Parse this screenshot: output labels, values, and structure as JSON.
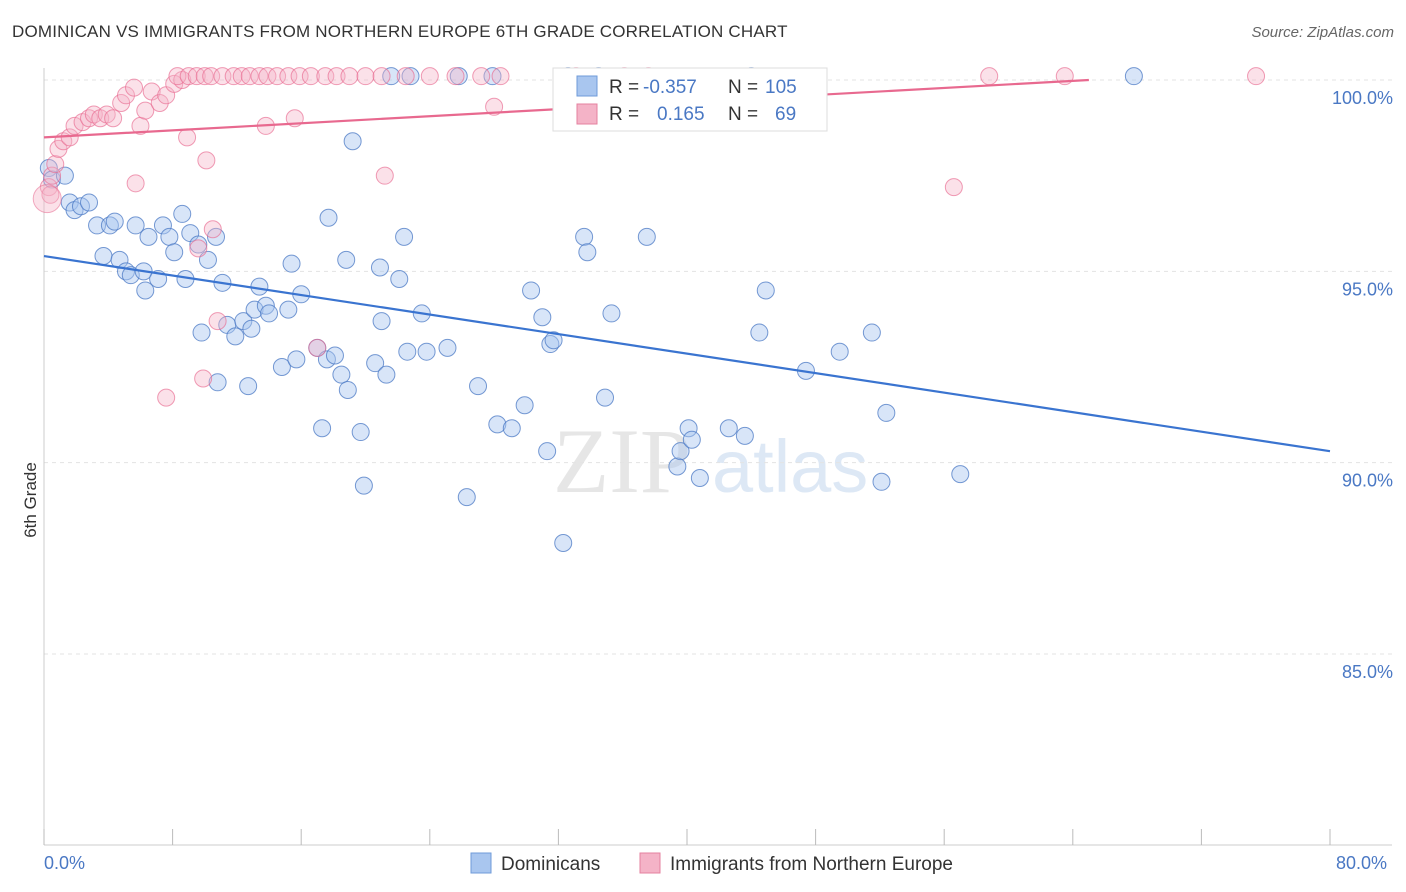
{
  "title": "DOMINICAN VS IMMIGRANTS FROM NORTHERN EUROPE 6TH GRADE CORRELATION CHART",
  "source": "Source: ZipAtlas.com",
  "watermark": {
    "zip": "ZIP",
    "atlas": "atlas"
  },
  "legend_stats": {
    "row1": {
      "r_label": "R =",
      "r_value": "-0.357",
      "n_label": "N =",
      "n_value": "105"
    },
    "row2": {
      "r_label": "R =",
      "r_value": "0.165",
      "n_label": "N =",
      "n_value": "69"
    }
  },
  "colors": {
    "blue": "#4a78c4",
    "blue_fill": "#a9c6ef",
    "blue_line": "#3a74d0",
    "pink": "#e8698f",
    "pink_fill": "#f4b3c7"
  },
  "chart_data": {
    "type": "scatter",
    "xlabel": "",
    "ylabel": "6th Grade",
    "xlim": [
      0,
      80
    ],
    "ylim": [
      80,
      100.8
    ],
    "x_tick_labels": [
      "0.0%",
      "80.0%"
    ],
    "y_ticks": [
      85,
      90,
      95,
      100
    ],
    "y_tick_labels": [
      "85.0%",
      "90.0%",
      "95.0%",
      "100.0%"
    ],
    "legend": [
      "Dominicans",
      "Immigrants from Northern Europe"
    ],
    "series": [
      {
        "name": "Dominicans",
        "trend": {
          "x": [
            0,
            80
          ],
          "y": [
            95.4,
            90.3
          ]
        },
        "points": [
          [
            0.3,
            97.7
          ],
          [
            0.5,
            97.4
          ],
          [
            1.3,
            97.5
          ],
          [
            1.6,
            96.8
          ],
          [
            1.9,
            96.6
          ],
          [
            2.3,
            96.7
          ],
          [
            2.8,
            96.8
          ],
          [
            3.3,
            96.2
          ],
          [
            4.1,
            96.2
          ],
          [
            4.4,
            96.3
          ],
          [
            5.7,
            96.2
          ],
          [
            6.5,
            95.9
          ],
          [
            7.4,
            96.2
          ],
          [
            7.8,
            95.9
          ],
          [
            8.6,
            96.5
          ],
          [
            9.1,
            96.0
          ],
          [
            9.6,
            95.7
          ],
          [
            10.7,
            95.9
          ],
          [
            3.7,
            95.4
          ],
          [
            4.7,
            95.3
          ],
          [
            5.1,
            95.0
          ],
          [
            5.4,
            94.9
          ],
          [
            6.2,
            95.0
          ],
          [
            6.3,
            94.5
          ],
          [
            7.1,
            94.8
          ],
          [
            8.1,
            95.5
          ],
          [
            8.8,
            94.8
          ],
          [
            10.2,
            95.3
          ],
          [
            11.1,
            94.7
          ],
          [
            13.4,
            94.6
          ],
          [
            15.4,
            95.2
          ],
          [
            16.0,
            94.4
          ],
          [
            17.7,
            96.4
          ],
          [
            18.8,
            95.3
          ],
          [
            20.9,
            95.1
          ],
          [
            22.1,
            94.8
          ],
          [
            22.4,
            95.9
          ],
          [
            9.8,
            93.4
          ],
          [
            10.8,
            92.1
          ],
          [
            11.4,
            93.6
          ],
          [
            11.9,
            93.3
          ],
          [
            12.4,
            93.7
          ],
          [
            12.7,
            92.0
          ],
          [
            12.9,
            93.5
          ],
          [
            13.1,
            94.0
          ],
          [
            13.8,
            94.1
          ],
          [
            14.0,
            93.9
          ],
          [
            14.8,
            92.5
          ],
          [
            15.2,
            94.0
          ],
          [
            15.7,
            92.7
          ],
          [
            17.0,
            93.0
          ],
          [
            17.6,
            92.7
          ],
          [
            18.1,
            92.8
          ],
          [
            18.5,
            92.3
          ],
          [
            17.3,
            90.9
          ],
          [
            18.9,
            91.9
          ],
          [
            19.7,
            90.8
          ],
          [
            19.9,
            89.4
          ],
          [
            20.6,
            92.6
          ],
          [
            21.3,
            92.3
          ],
          [
            21.0,
            93.7
          ],
          [
            22.6,
            92.9
          ],
          [
            23.5,
            93.9
          ],
          [
            23.8,
            92.9
          ],
          [
            25.1,
            93.0
          ],
          [
            26.3,
            89.1
          ],
          [
            27.0,
            92.0
          ],
          [
            28.2,
            91.0
          ],
          [
            29.1,
            90.9
          ],
          [
            29.9,
            91.5
          ],
          [
            30.3,
            94.5
          ],
          [
            31.0,
            93.8
          ],
          [
            31.3,
            90.3
          ],
          [
            31.5,
            93.1
          ],
          [
            31.7,
            93.2
          ],
          [
            32.3,
            87.9
          ],
          [
            33.6,
            95.9
          ],
          [
            33.8,
            95.5
          ],
          [
            34.9,
            91.7
          ],
          [
            35.3,
            93.9
          ],
          [
            37.5,
            95.9
          ],
          [
            39.4,
            89.9
          ],
          [
            39.6,
            90.3
          ],
          [
            40.1,
            90.9
          ],
          [
            40.3,
            90.6
          ],
          [
            40.8,
            89.6
          ],
          [
            42.6,
            90.9
          ],
          [
            43.6,
            90.7
          ],
          [
            44.5,
            93.4
          ],
          [
            44.9,
            94.5
          ],
          [
            47.4,
            92.4
          ],
          [
            49.5,
            92.9
          ],
          [
            51.5,
            93.4
          ],
          [
            52.1,
            89.5
          ],
          [
            52.4,
            91.3
          ],
          [
            57.0,
            89.7
          ],
          [
            19.2,
            98.4
          ],
          [
            21.6,
            100.1
          ],
          [
            22.8,
            100.1
          ],
          [
            25.8,
            100.1
          ],
          [
            27.9,
            100.1
          ],
          [
            32.6,
            100.1
          ],
          [
            34.5,
            100.1
          ],
          [
            44.0,
            100.1
          ],
          [
            67.8,
            100.1
          ]
        ]
      },
      {
        "name": "Immigrants from Northern Europe",
        "trend": {
          "x": [
            0,
            65
          ],
          "y": [
            98.5,
            100.0
          ]
        },
        "points": [
          [
            0.3,
            97.2
          ],
          [
            0.5,
            97.5
          ],
          [
            0.7,
            97.8
          ],
          [
            0.9,
            98.2
          ],
          [
            1.2,
            98.4
          ],
          [
            1.6,
            98.5
          ],
          [
            1.9,
            98.8
          ],
          [
            2.4,
            98.9
          ],
          [
            2.8,
            99.0
          ],
          [
            3.1,
            99.1
          ],
          [
            3.5,
            99.0
          ],
          [
            3.9,
            99.1
          ],
          [
            4.3,
            99.0
          ],
          [
            4.8,
            99.4
          ],
          [
            5.1,
            99.6
          ],
          [
            5.6,
            99.8
          ],
          [
            6.0,
            98.8
          ],
          [
            6.3,
            99.2
          ],
          [
            6.7,
            99.7
          ],
          [
            7.2,
            99.4
          ],
          [
            7.6,
            99.6
          ],
          [
            8.1,
            99.9
          ],
          [
            8.6,
            100.0
          ],
          [
            8.3,
            100.1
          ],
          [
            9.0,
            100.1
          ],
          [
            9.5,
            100.1
          ],
          [
            10.0,
            100.1
          ],
          [
            10.4,
            100.1
          ],
          [
            11.1,
            100.1
          ],
          [
            11.8,
            100.1
          ],
          [
            12.3,
            100.1
          ],
          [
            12.8,
            100.1
          ],
          [
            13.4,
            100.1
          ],
          [
            13.9,
            100.1
          ],
          [
            14.5,
            100.1
          ],
          [
            15.2,
            100.1
          ],
          [
            15.9,
            100.1
          ],
          [
            16.6,
            100.1
          ],
          [
            17.5,
            100.1
          ],
          [
            18.2,
            100.1
          ],
          [
            19.0,
            100.1
          ],
          [
            20.0,
            100.1
          ],
          [
            21.0,
            100.1
          ],
          [
            22.5,
            100.1
          ],
          [
            24.0,
            100.1
          ],
          [
            25.6,
            100.1
          ],
          [
            27.2,
            100.1
          ],
          [
            28.4,
            100.1
          ],
          [
            28.0,
            99.3
          ],
          [
            8.9,
            98.5
          ],
          [
            13.8,
            98.8
          ],
          [
            15.6,
            99.0
          ],
          [
            21.2,
            97.5
          ],
          [
            10.1,
            97.9
          ],
          [
            5.7,
            97.3
          ],
          [
            10.5,
            96.1
          ],
          [
            9.6,
            95.6
          ],
          [
            10.8,
            93.7
          ],
          [
            17.0,
            93.0
          ],
          [
            9.9,
            92.2
          ],
          [
            7.6,
            91.7
          ],
          [
            0.4,
            97.0
          ],
          [
            58.8,
            100.1
          ],
          [
            63.5,
            100.1
          ],
          [
            75.4,
            100.1
          ],
          [
            56.6,
            97.2
          ],
          [
            33.1,
            100.1
          ],
          [
            36.1,
            100.1
          ],
          [
            37.6,
            100.1
          ]
        ]
      }
    ]
  }
}
